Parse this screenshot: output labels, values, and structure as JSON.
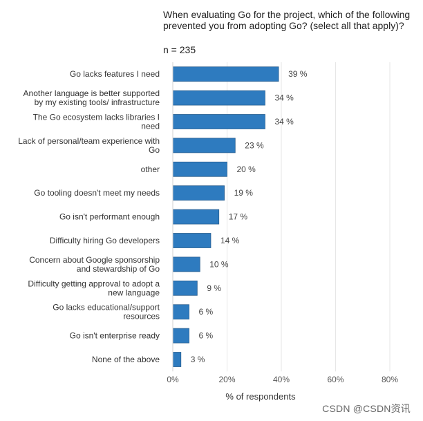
{
  "chart_data": {
    "type": "bar",
    "orientation": "horizontal",
    "title": "When evaluating Go for the project, which of the following prevented you from adopting Go? (select all that apply)?",
    "subtitle": "n = 235",
    "xlabel": "% of respondents",
    "ylabel": "",
    "xlim": [
      0,
      80
    ],
    "x_ticks": [
      "0%",
      "20%",
      "40%",
      "60%",
      "80%"
    ],
    "grid": true,
    "bar_color": "#2e7bbf",
    "categories": [
      "Go lacks features I need",
      "Another language is better supported by my existing tools/ infrastructure",
      "The Go ecosystem lacks libraries I need",
      "Lack of personal/team experience with Go",
      "other",
      "Go tooling doesn't meet my needs",
      "Go isn't performant enough",
      "Difficulty hiring Go developers",
      "Concern about Google sponsorship and stewardship of Go",
      "Difficulty getting approval to adopt a new language",
      "Go lacks educational/support resources",
      "Go isn't enterprise ready",
      "None of the above"
    ],
    "values": [
      39,
      34,
      34,
      23,
      20,
      19,
      17,
      14,
      10,
      9,
      6,
      6,
      3
    ],
    "data_labels": [
      "39 %",
      "34 %",
      "34 %",
      "23 %",
      "20 %",
      "19 %",
      "17 %",
      "14 %",
      "10 %",
      "9 %",
      "6 %",
      "6 %",
      "3 %"
    ]
  },
  "watermark": "CSDN @CSDN资讯"
}
